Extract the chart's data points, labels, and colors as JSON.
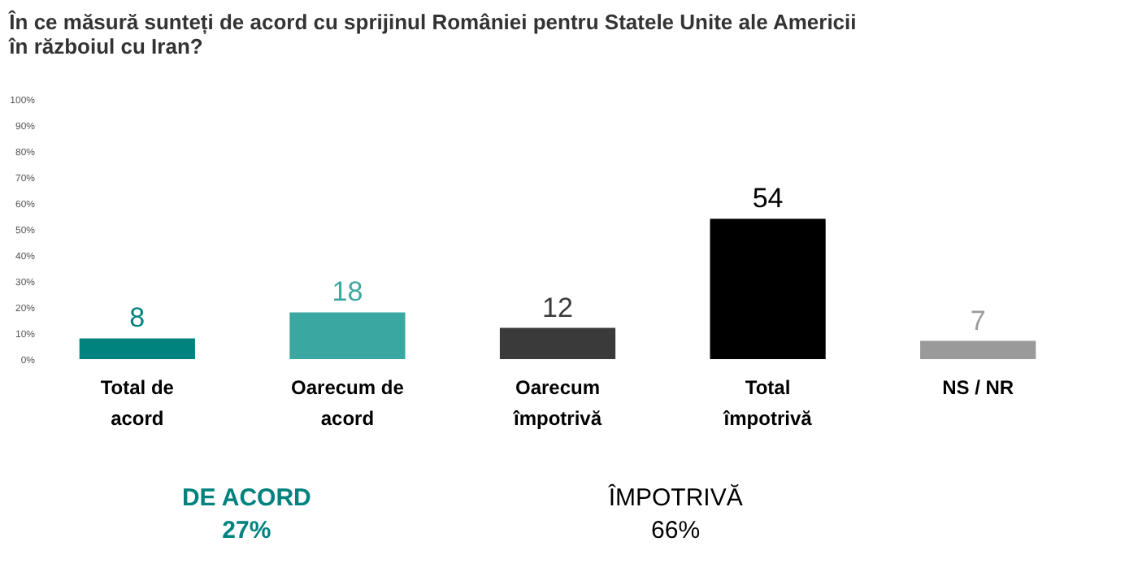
{
  "chart_data": {
    "type": "bar",
    "title": "În ce măsură sunteți de acord cu sprijinul României pentru Statele Unite ale Americii în războiul cu Iran?",
    "categories": [
      "Total de acord",
      "Oarecum de acord",
      "Oarecum împotrivă",
      "Total împotrivă",
      "NS / NR"
    ],
    "values": [
      8,
      18,
      12,
      54,
      7
    ],
    "colors": [
      "#00827f",
      "#3aa8a0",
      "#3a3a3a",
      "#000000",
      "#9a9a9a"
    ],
    "ylim": [
      0,
      100
    ],
    "yticks": [
      {
        "value": 0,
        "label": "0%"
      },
      {
        "value": 10,
        "label": "10%"
      },
      {
        "value": 20,
        "label": "20%"
      },
      {
        "value": 30,
        "label": "30%"
      },
      {
        "value": 40,
        "label": "40%"
      },
      {
        "value": 50,
        "label": "50%"
      },
      {
        "value": 60,
        "label": "60%"
      },
      {
        "value": 70,
        "label": "70%"
      },
      {
        "value": 80,
        "label": "80%"
      },
      {
        "value": 90,
        "label": "90%"
      },
      {
        "value": 100,
        "label": "100%"
      }
    ],
    "data_labels": true,
    "grid": false,
    "legend": false,
    "annotations": [
      "DE ACORD",
      "27%",
      "ÎMPOTRIVĂ",
      "66%"
    ]
  }
}
